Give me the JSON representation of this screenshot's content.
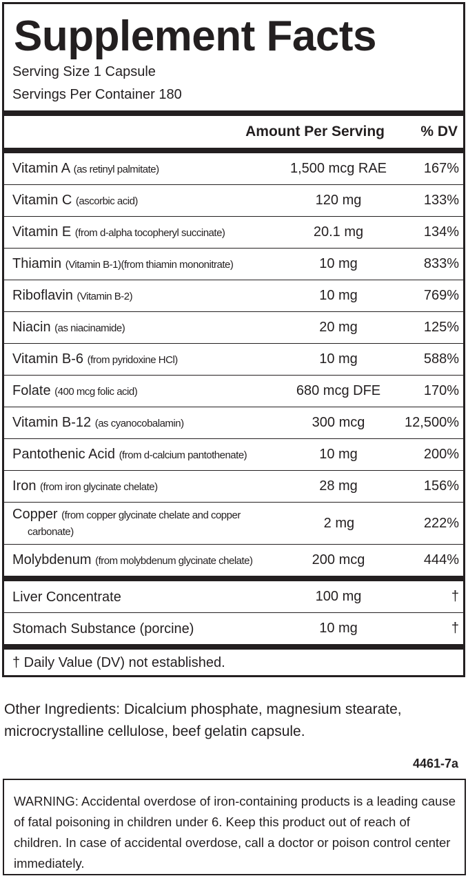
{
  "title": "Supplement Facts",
  "serving_size": "Serving Size 1 Capsule",
  "servings_per_container": "Servings Per Container 180",
  "header": {
    "amount": "Amount Per Serving",
    "dv": "% DV"
  },
  "rows": [
    {
      "name": "Vitamin A",
      "detail": "(as retinyl palmitate)",
      "amount": "1,500 mcg RAE",
      "dv": "167%"
    },
    {
      "name": "Vitamin C",
      "detail": "(ascorbic acid)",
      "amount": "120 mg",
      "dv": "133%"
    },
    {
      "name": "Vitamin E",
      "detail": "(from d-alpha tocopheryl succinate)",
      "amount": "20.1 mg",
      "dv": "134%"
    },
    {
      "name": "Thiamin",
      "detail": "(Vitamin B-1)(from thiamin mononitrate)",
      "amount": "10 mg",
      "dv": "833%"
    },
    {
      "name": "Riboflavin",
      "detail": "(Vitamin B-2)",
      "amount": "10 mg",
      "dv": "769%"
    },
    {
      "name": "Niacin",
      "detail": "(as niacinamide)",
      "amount": "20 mg",
      "dv": "125%"
    },
    {
      "name": "Vitamin B-6",
      "detail": "(from pyridoxine HCl)",
      "amount": "10 mg",
      "dv": "588%"
    },
    {
      "name": "Folate",
      "detail": "(400 mcg folic acid)",
      "amount": "680 mcg DFE",
      "dv": "170%"
    },
    {
      "name": "Vitamin B-12",
      "detail": "(as cyanocobalamin)",
      "amount": "300 mcg",
      "dv": "12,500%"
    },
    {
      "name": "Pantothenic Acid",
      "detail": "(from d-calcium pantothenate)",
      "amount": "10 mg",
      "dv": "200%"
    },
    {
      "name": "Iron",
      "detail": "(from iron glycinate chelate)",
      "amount": "28 mg",
      "dv": "156%"
    },
    {
      "name": "Copper",
      "detail": "(from copper glycinate chelate and copper carbonate)",
      "amount": "2 mg",
      "dv": "222%"
    },
    {
      "name": "Molybdenum",
      "detail": "(from molybdenum glycinate chelate)",
      "amount": "200 mcg",
      "dv": "444%"
    }
  ],
  "other_rows": [
    {
      "name": "Liver Concentrate",
      "amount": "100 mg",
      "dv": "†"
    },
    {
      "name": "Stomach Substance (porcine)",
      "amount": "10 mg",
      "dv": "†"
    }
  ],
  "footnote": "† Daily Value (DV) not established.",
  "other_ingredients": "Other Ingredients: Dicalcium phosphate, magnesium stearate, microcrystalline cellulose, beef gelatin capsule.",
  "code": "4461-7a",
  "warning": "WARNING: Accidental overdose of iron-containing products is a leading cause of fatal poisoning in children under 6.  Keep this product out of reach of children.  In case of accidental overdose, call a doctor or poison control center immediately."
}
